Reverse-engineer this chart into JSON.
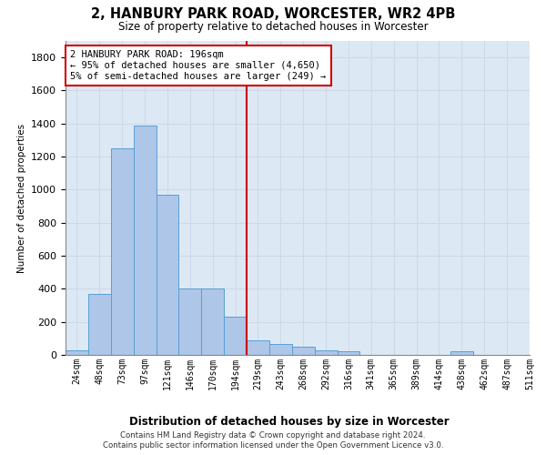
{
  "title": "2, HANBURY PARK ROAD, WORCESTER, WR2 4PB",
  "subtitle": "Size of property relative to detached houses in Worcester",
  "xlabel": "Distribution of detached houses by size in Worcester",
  "ylabel": "Number of detached properties",
  "bin_labels": [
    "24sqm",
    "48sqm",
    "73sqm",
    "97sqm",
    "121sqm",
    "146sqm",
    "170sqm",
    "194sqm",
    "219sqm",
    "243sqm",
    "268sqm",
    "292sqm",
    "316sqm",
    "341sqm",
    "365sqm",
    "389sqm",
    "414sqm",
    "438sqm",
    "462sqm",
    "487sqm",
    "511sqm"
  ],
  "bar_heights": [
    30,
    370,
    1250,
    1390,
    970,
    400,
    400,
    230,
    90,
    65,
    50,
    30,
    20,
    0,
    0,
    0,
    0,
    20,
    0,
    0
  ],
  "bar_color": "#aec6e8",
  "bar_edge_color": "#5a9fd4",
  "property_line_x": 7,
  "annotation_text": "2 HANBURY PARK ROAD: 196sqm\n← 95% of detached houses are smaller (4,650)\n5% of semi-detached houses are larger (249) →",
  "annotation_box_color": "#ffffff",
  "annotation_box_edge": "#cc0000",
  "red_line_color": "#cc0000",
  "ylim": [
    0,
    1900
  ],
  "yticks": [
    0,
    200,
    400,
    600,
    800,
    1000,
    1200,
    1400,
    1600,
    1800
  ],
  "grid_color": "#d0d8e8",
  "bg_color": "#dce9f5",
  "footer_line1": "Contains HM Land Registry data © Crown copyright and database right 2024.",
  "footer_line2": "Contains public sector information licensed under the Open Government Licence v3.0."
}
